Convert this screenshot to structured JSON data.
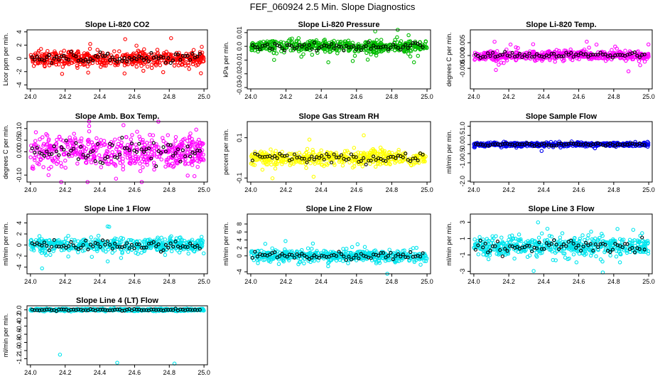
{
  "title": "FEF_060924  2.5 Min. Slope Diagnostics",
  "chart_data": [
    {
      "type": "scatter",
      "title": "Slope Li-820 CO2",
      "ylabel": "Licor ppm per min.",
      "xlim": [
        23.98,
        25.02
      ],
      "ylim": [
        -4.6,
        4.3
      ],
      "yticks": [
        -4,
        -2,
        0,
        2,
        4
      ],
      "yticklabels": [
        "-4",
        "-2",
        "0",
        "2",
        "4"
      ],
      "color": "#ff0000",
      "spread": 0.8,
      "outlier_pct": 0.08,
      "xticks": [
        24.0,
        24.2,
        24.4,
        24.6,
        24.8,
        25.0
      ],
      "xticklabels": [
        "24.0",
        "24.2",
        "24.4",
        "24.6",
        "24.8",
        "25.0"
      ]
    },
    {
      "type": "scatter",
      "title": "Slope Li-820 Pressure",
      "ylabel": "kPa per min.",
      "xlim": [
        23.98,
        25.02
      ],
      "ylim": [
        -0.031,
        0.012
      ],
      "yticks": [
        -0.03,
        -0.02,
        -0.01,
        0.0,
        0.01
      ],
      "yticklabels": [
        "-0.03",
        "-0.02",
        "-0.01",
        "0.0",
        "0.01"
      ],
      "color": "#00bb00",
      "spread": 0.003,
      "outlier_pct": 0.1,
      "xticks": [
        24.0,
        24.2,
        24.4,
        24.6,
        24.8,
        25.0
      ],
      "xticklabels": [
        "24.0",
        "24.2",
        "24.4",
        "24.6",
        "24.8",
        "25.0"
      ]
    },
    {
      "type": "scatter",
      "title": "Slope Li-820 Temp.",
      "ylabel": "degrees C per min.",
      "xlim": [
        23.98,
        25.02
      ],
      "ylim": [
        -0.013,
        0.01
      ],
      "yticks": [
        -0.005,
        0.0,
        0.005
      ],
      "yticklabels": [
        "-0.005",
        "0.000",
        "0.005"
      ],
      "color": "#ff00ff",
      "spread": 0.0012,
      "outlier_pct": 0.12,
      "xticks": [
        24.0,
        24.2,
        24.4,
        24.6,
        24.8,
        25.0
      ],
      "xticklabels": [
        "24.0",
        "24.2",
        "24.4",
        "24.6",
        "24.8",
        "25.0"
      ]
    },
    {
      "type": "scatter",
      "title": "Slope Amb. Box Temp.",
      "ylabel": "degrees C per min.",
      "xlim": [
        23.98,
        25.02
      ],
      "ylim": [
        -0.13,
        0.13
      ],
      "yticks": [
        -0.1,
        0.0,
        0.05,
        0.1
      ],
      "yticklabels": [
        "-0.10",
        "0.00",
        "0.05",
        "0.10"
      ],
      "color": "#ff00ff",
      "spread": 0.05,
      "outlier_pct": 0.05,
      "xticks": [
        24.0,
        24.2,
        24.4,
        24.6,
        24.8,
        25.0
      ],
      "xticklabels": [
        "24.0",
        "24.2",
        "24.4",
        "24.6",
        "24.8",
        "25.0"
      ]
    },
    {
      "type": "scatter",
      "title": "Slope Gas Stream RH",
      "ylabel": "percent per min.",
      "xlim": [
        23.98,
        25.02
      ],
      "ylim": [
        -0.12,
        0.18
      ],
      "yticks": [
        -0.1,
        0.1
      ],
      "yticklabels": [
        "-0.1",
        "0.1"
      ],
      "color": "#ffff00",
      "spread": 0.025,
      "outlier_pct": 0.05,
      "xticks": [
        24.0,
        24.2,
        24.4,
        24.6,
        24.8,
        25.0
      ],
      "xticklabels": [
        "24.0",
        "24.2",
        "24.4",
        "24.6",
        "24.8",
        "25.0"
      ]
    },
    {
      "type": "scatter",
      "title": "Slope Sample Flow",
      "ylabel": "ml/min per min.",
      "xlim": [
        23.98,
        25.02
      ],
      "ylim": [
        -2.05,
        1.25
      ],
      "yticks": [
        -2.0,
        -1.0,
        -0.5,
        0.0,
        0.5,
        1.0
      ],
      "yticklabels": [
        "-2.0",
        "-1.0",
        "-0.5",
        "0.0",
        "0.5",
        "1.0"
      ],
      "color": "#0000ee",
      "spread": 0.08,
      "outlier_pct": 0.06,
      "xticks": [
        24.0,
        24.2,
        24.4,
        24.6,
        24.8,
        25.0
      ],
      "xticklabels": [
        "24.0",
        "24.2",
        "24.4",
        "24.6",
        "24.8",
        "25.0"
      ]
    },
    {
      "type": "scatter",
      "title": "Slope Line 1 Flow",
      "ylabel": "ml/min per min.",
      "xlim": [
        23.98,
        25.02
      ],
      "ylim": [
        -5.2,
        5.6
      ],
      "yticks": [
        -4,
        -2,
        0,
        2,
        4
      ],
      "yticklabels": [
        "-4",
        "-2",
        "0",
        "2",
        "4"
      ],
      "color": "#00e5ee",
      "spread": 0.9,
      "outlier_pct": 0.08,
      "xticks": [
        24.0,
        24.2,
        24.4,
        24.6,
        24.8,
        25.0
      ],
      "xticklabels": [
        "24.0",
        "24.2",
        "24.4",
        "24.6",
        "24.8",
        "25.0"
      ]
    },
    {
      "type": "scatter",
      "title": "Slope Line 2 Flow",
      "ylabel": "ml/min per min.",
      "xlim": [
        23.98,
        25.02
      ],
      "ylim": [
        -4.5,
        10.5
      ],
      "yticks": [
        -4,
        0,
        2,
        4,
        6,
        8
      ],
      "yticklabels": [
        "-4",
        "0",
        "2",
        "4",
        "6",
        "8"
      ],
      "color": "#00e5ee",
      "spread": 1.0,
      "outlier_pct": 0.06,
      "xticks": [
        24.0,
        24.2,
        24.4,
        24.6,
        24.8,
        25.0
      ],
      "xticklabels": [
        "24.0",
        "24.2",
        "24.4",
        "24.6",
        "24.8",
        "25.0"
      ]
    },
    {
      "type": "scatter",
      "title": "Slope Line 3 Flow",
      "ylabel": "ml/min per min.",
      "xlim": [
        23.98,
        25.02
      ],
      "ylim": [
        -3.3,
        4.0
      ],
      "yticks": [
        -3,
        -1,
        1,
        3
      ],
      "yticklabels": [
        "-3",
        "-1",
        "1",
        "3"
      ],
      "color": "#00e5ee",
      "spread": 0.8,
      "outlier_pct": 0.08,
      "xticks": [
        24.0,
        24.2,
        24.4,
        24.6,
        24.8,
        25.0
      ],
      "xticklabels": [
        "24.0",
        "24.2",
        "24.4",
        "24.6",
        "24.8",
        "25.0"
      ]
    },
    {
      "type": "scatter",
      "title": "Slope Line 4 (LT) Flow",
      "ylabel": "ml/min per min.",
      "xlim": [
        23.98,
        25.02
      ],
      "ylim": [
        -1.35,
        0.1
      ],
      "yticks": [
        -1.2,
        -1.0,
        -0.8,
        -0.6,
        -0.4,
        -0.2,
        0.0
      ],
      "yticklabels": [
        "-1.2",
        "-1.0",
        "-0.8",
        "-0.6",
        "-0.4",
        "-0.2",
        "0.0"
      ],
      "color": "#00e5ee",
      "spread": 0.02,
      "outlier_pct": 0.0,
      "outliers": [
        [
          24.17,
          -1.1
        ],
        [
          24.5,
          -1.3
        ],
        [
          24.83,
          -1.32
        ]
      ],
      "xticks": [
        24.0,
        24.2,
        24.4,
        24.6,
        24.8,
        25.0
      ],
      "xticklabels": [
        "24.0",
        "24.2",
        "24.4",
        "24.6",
        "24.8",
        "25.0"
      ]
    }
  ]
}
